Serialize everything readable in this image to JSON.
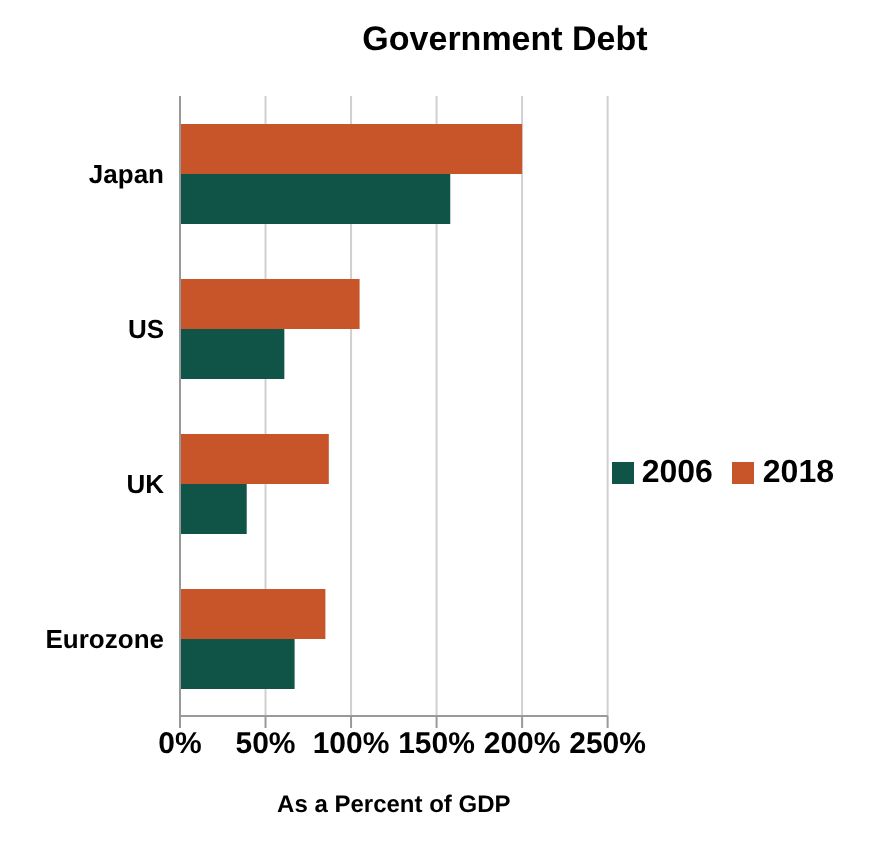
{
  "chart_data": {
    "type": "bar",
    "orientation": "horizontal",
    "title": "Government Debt",
    "xlabel": "As a Percent of GDP",
    "categories": [
      "Japan",
      "US",
      "UK",
      "Eurozone"
    ],
    "series": [
      {
        "name": "2018",
        "color": "#c8552a",
        "values": [
          200,
          105,
          87,
          85
        ]
      },
      {
        "name": "2006",
        "color": "#0f5446",
        "values": [
          158,
          61,
          39,
          67
        ]
      }
    ],
    "xlim": [
      0,
      250
    ],
    "xticks": [
      {
        "value": 0,
        "label": "0%"
      },
      {
        "value": 50,
        "label": "50%"
      },
      {
        "value": 100,
        "label": "100%"
      },
      {
        "value": 150,
        "label": "150%"
      },
      {
        "value": 200,
        "label": "200%"
      },
      {
        "value": 250,
        "label": "250%"
      }
    ],
    "grid": "x",
    "legend": "right"
  }
}
